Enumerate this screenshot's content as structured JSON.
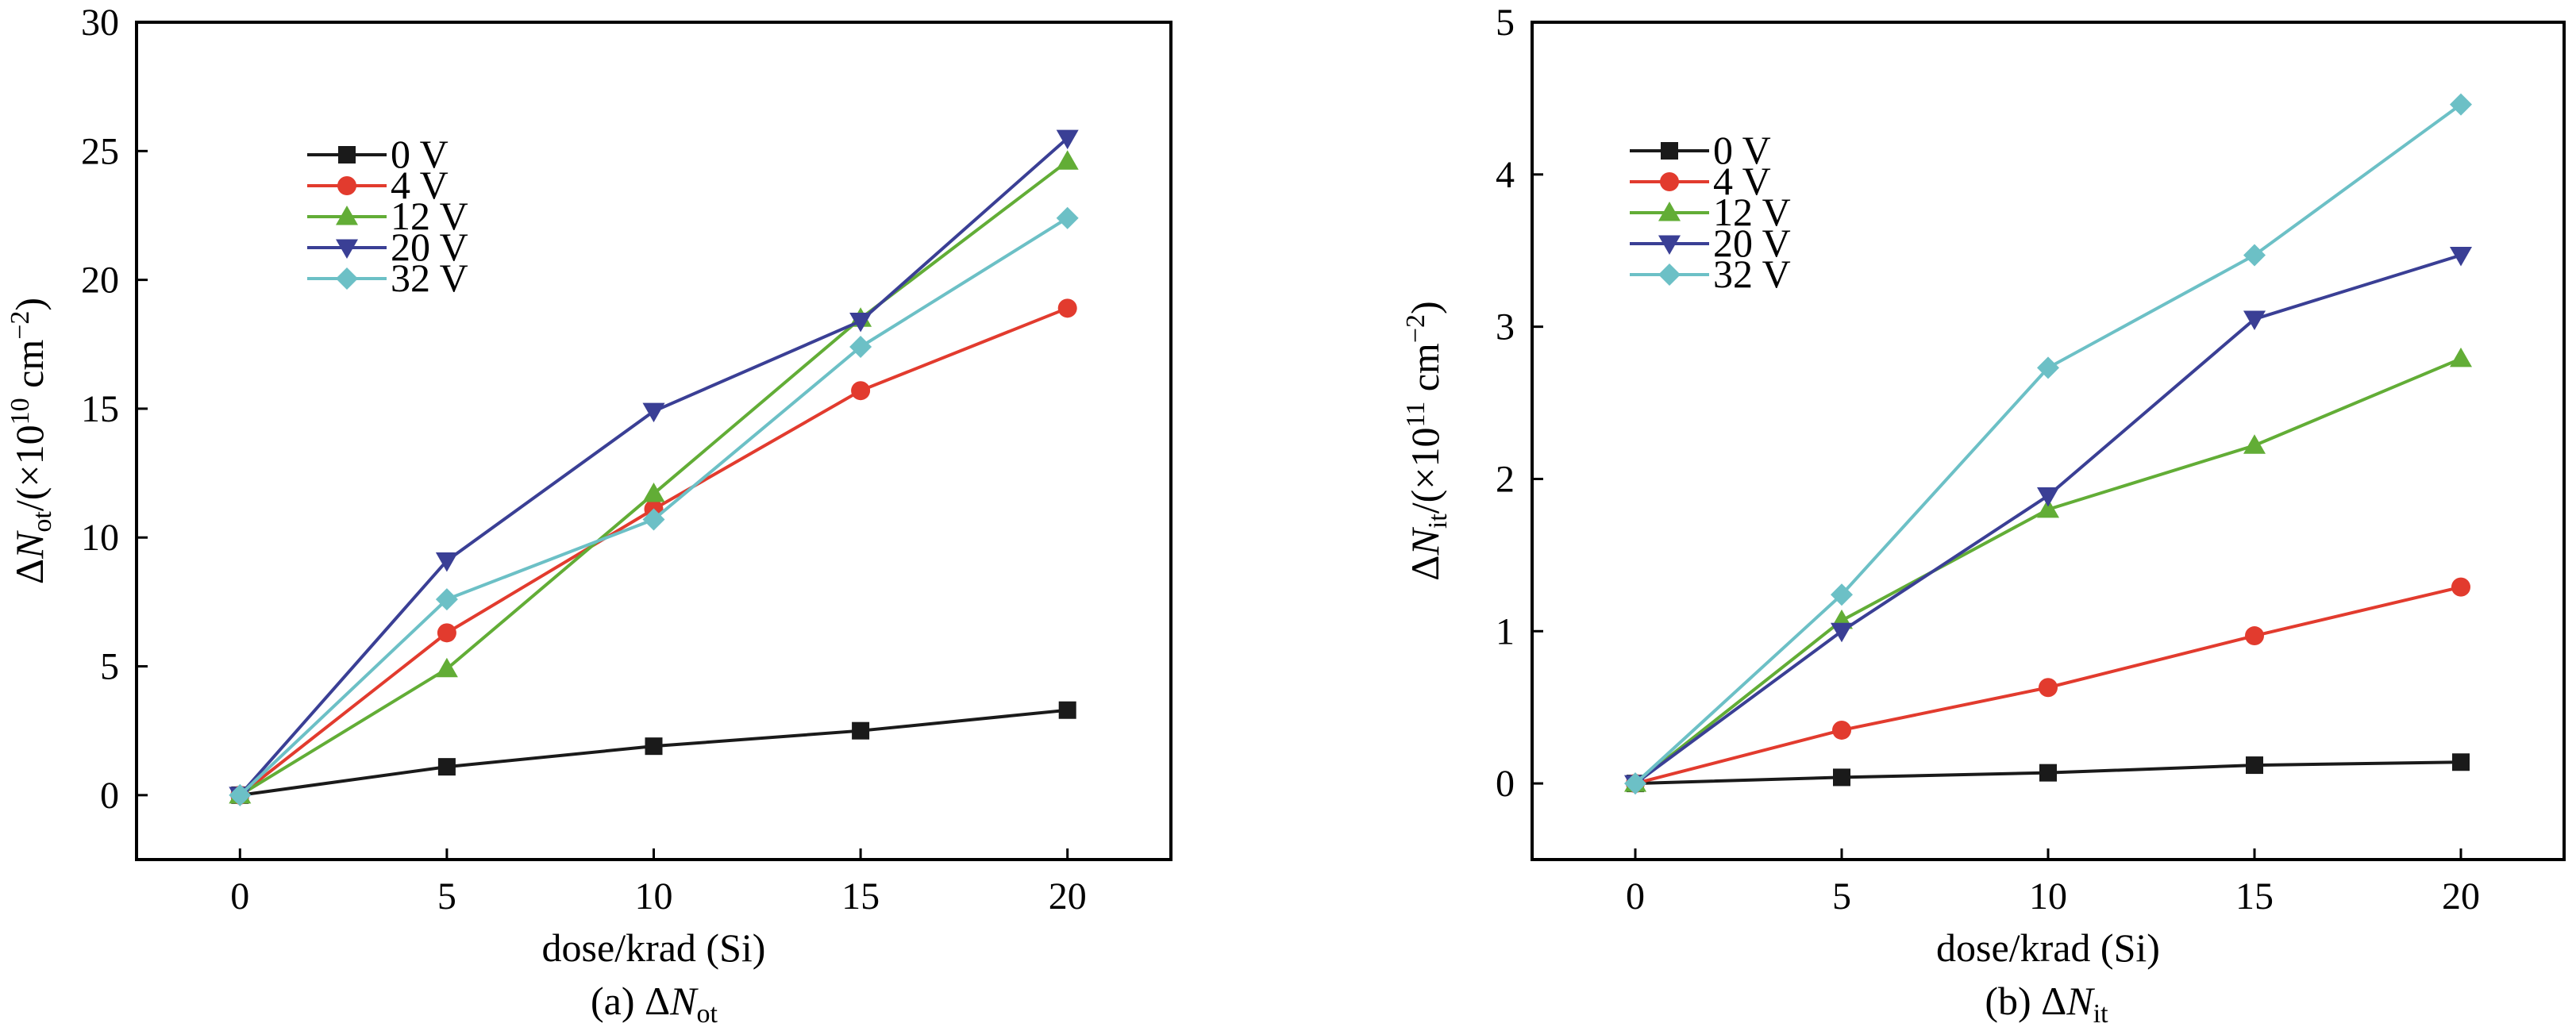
{
  "chart_data": [
    {
      "type": "line",
      "caption": "(a) ΔN",
      "caption_sub": "ot",
      "xlabel": "dose/krad (Si)",
      "ylabel": {
        "delta": "Δ",
        "var": "N",
        "sub": "ot",
        "pre": "/(×10",
        "exp": "10",
        "unit": " cm",
        "unit_exp": "−2",
        "post": ")"
      },
      "x": [
        0,
        5,
        10,
        15,
        20
      ],
      "xlim": [
        -2.5,
        22.5
      ],
      "ylim": [
        -2.5,
        30
      ],
      "xticks": [
        "0",
        "5",
        "10",
        "15",
        "20"
      ],
      "yticks": [
        "0",
        "5",
        "10",
        "15",
        "20",
        "25",
        "30"
      ],
      "legend_position": "upper-left",
      "series": [
        {
          "name": "0 V",
          "color": "#1a1a1a",
          "marker": "square",
          "values": [
            0,
            1.1,
            1.9,
            2.5,
            3.3
          ]
        },
        {
          "name": "4 V",
          "color": "#e23b2e",
          "marker": "circle",
          "values": [
            0,
            6.3,
            11.1,
            15.7,
            18.9
          ]
        },
        {
          "name": "12 V",
          "color": "#62ad36",
          "marker": "triangle-up",
          "values": [
            0,
            4.9,
            11.7,
            18.5,
            24.6
          ]
        },
        {
          "name": "20 V",
          "color": "#3a3f95",
          "marker": "triangle-down",
          "values": [
            0,
            9.1,
            14.9,
            18.4,
            25.5
          ]
        },
        {
          "name": "32 V",
          "color": "#6cc0c6",
          "marker": "diamond",
          "values": [
            0,
            7.6,
            10.7,
            17.4,
            22.4
          ]
        }
      ]
    },
    {
      "type": "line",
      "caption": "(b) ΔN",
      "caption_sub": "it",
      "xlabel": "dose/krad (Si)",
      "ylabel": {
        "delta": "Δ",
        "var": "N",
        "sub": "it",
        "pre": "/(×10",
        "exp": "11",
        "unit": " cm",
        "unit_exp": "−2",
        "post": ")"
      },
      "x": [
        0,
        5,
        10,
        15,
        20
      ],
      "xlim": [
        -2.5,
        22.5
      ],
      "ylim": [
        -0.5,
        5
      ],
      "xticks": [
        "0",
        "5",
        "10",
        "15",
        "20"
      ],
      "yticks": [
        "0",
        "1",
        "2",
        "3",
        "4",
        "5"
      ],
      "legend_position": "upper-left",
      "series": [
        {
          "name": "0 V",
          "color": "#1a1a1a",
          "marker": "square",
          "values": [
            0,
            0.04,
            0.07,
            0.12,
            0.14
          ]
        },
        {
          "name": "4 V",
          "color": "#e23b2e",
          "marker": "circle",
          "values": [
            0,
            0.35,
            0.63,
            0.97,
            1.29
          ]
        },
        {
          "name": "12 V",
          "color": "#62ad36",
          "marker": "triangle-up",
          "values": [
            0,
            1.07,
            1.8,
            2.22,
            2.79
          ]
        },
        {
          "name": "20 V",
          "color": "#3a3f95",
          "marker": "triangle-down",
          "values": [
            0,
            1.0,
            1.89,
            3.05,
            3.47
          ]
        },
        {
          "name": "32 V",
          "color": "#6cc0c6",
          "marker": "diamond",
          "values": [
            0,
            1.24,
            2.73,
            3.47,
            4.46
          ]
        }
      ]
    }
  ]
}
